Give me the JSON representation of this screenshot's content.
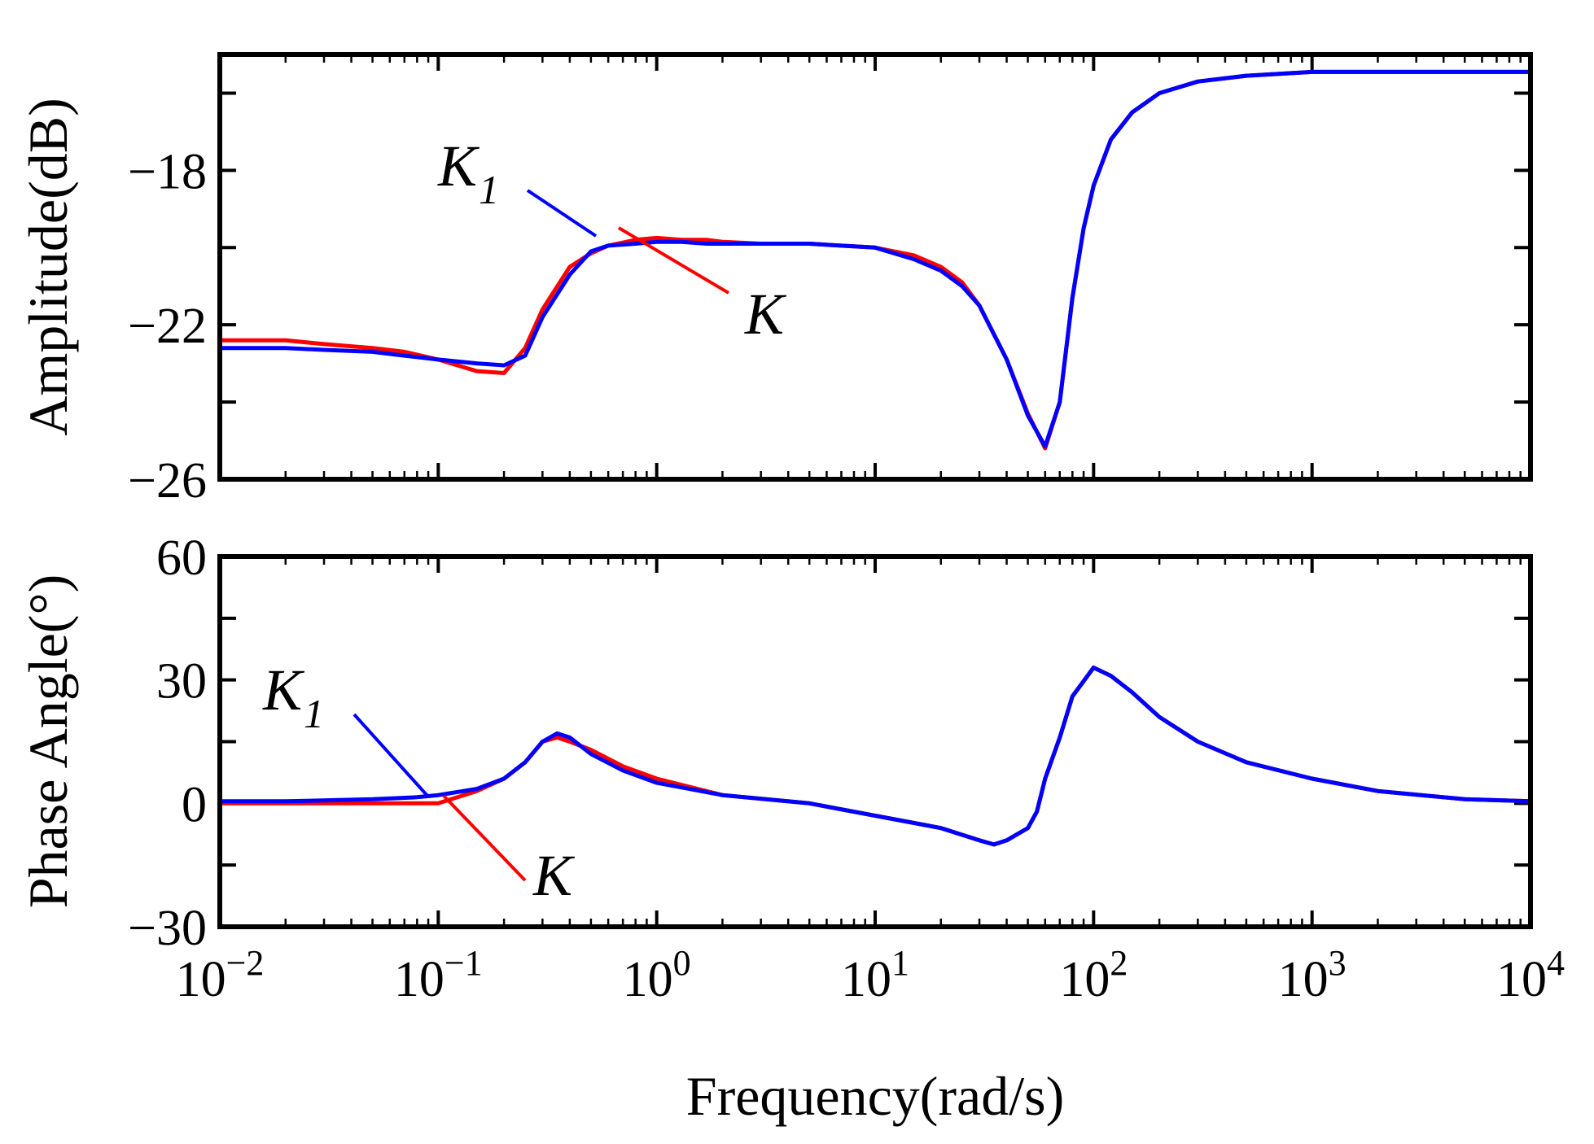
{
  "chart_data": [
    {
      "type": "line",
      "panel": "amplitude",
      "ylabel": "Amplitude(dB)",
      "xscale": "log",
      "xlim": [
        0.01,
        10000
      ],
      "ylim": [
        -26,
        -15
      ],
      "yticks": [
        -26,
        -22,
        -18
      ],
      "ytick_labels": [
        "−26",
        "−22",
        "−18"
      ],
      "series": [
        {
          "name": "K",
          "color": "#ff0000",
          "x": [
            0.01,
            0.02,
            0.03,
            0.05,
            0.07,
            0.1,
            0.15,
            0.2,
            0.25,
            0.3,
            0.4,
            0.5,
            0.6,
            0.8,
            1.0,
            1.3,
            1.7,
            2,
            3,
            5,
            7,
            10,
            15,
            20,
            25,
            30,
            40,
            50,
            60,
            70,
            80,
            90,
            100,
            120,
            150,
            200,
            300,
            500,
            1000,
            2000,
            5000,
            10000
          ],
          "y": [
            -22.4,
            -22.4,
            -22.5,
            -22.6,
            -22.7,
            -22.9,
            -23.2,
            -23.25,
            -22.6,
            -21.6,
            -20.5,
            -20.15,
            -19.95,
            -19.8,
            -19.75,
            -19.8,
            -19.8,
            -19.85,
            -19.9,
            -19.9,
            -19.95,
            -20.0,
            -20.2,
            -20.5,
            -20.9,
            -21.5,
            -22.9,
            -24.3,
            -25.2,
            -24.0,
            -21.3,
            -19.5,
            -18.4,
            -17.2,
            -16.5,
            -16.0,
            -15.7,
            -15.55,
            -15.45,
            -15.45,
            -15.45,
            -15.45
          ]
        },
        {
          "name": "K₁",
          "color": "#0000ff",
          "x": [
            0.01,
            0.02,
            0.03,
            0.05,
            0.07,
            0.1,
            0.15,
            0.2,
            0.25,
            0.3,
            0.4,
            0.5,
            0.6,
            0.8,
            1.0,
            1.3,
            1.7,
            2,
            3,
            5,
            7,
            10,
            15,
            20,
            25,
            30,
            40,
            50,
            60,
            70,
            80,
            90,
            100,
            120,
            150,
            200,
            300,
            500,
            1000,
            2000,
            5000,
            10000
          ],
          "y": [
            -22.6,
            -22.6,
            -22.65,
            -22.7,
            -22.8,
            -22.9,
            -23.0,
            -23.05,
            -22.8,
            -21.8,
            -20.7,
            -20.1,
            -19.95,
            -19.9,
            -19.85,
            -19.85,
            -19.9,
            -19.9,
            -19.9,
            -19.9,
            -19.95,
            -20.0,
            -20.3,
            -20.6,
            -21.0,
            -21.5,
            -22.9,
            -24.35,
            -25.15,
            -24.0,
            -21.3,
            -19.5,
            -18.4,
            -17.2,
            -16.5,
            -16.0,
            -15.7,
            -15.55,
            -15.45,
            -15.45,
            -15.45,
            -15.45
          ]
        }
      ],
      "annotations": [
        {
          "text": "K",
          "subscript": "1",
          "series": "K₁"
        },
        {
          "text": "K",
          "subscript": "",
          "series": "K"
        }
      ]
    },
    {
      "type": "line",
      "panel": "phase",
      "ylabel": "Phase Angle(°)",
      "xlabel": "Frequency(rad/s)",
      "xscale": "log",
      "xlim": [
        0.01,
        10000
      ],
      "ylim": [
        -30,
        60
      ],
      "yticks": [
        -30,
        0,
        30,
        60
      ],
      "ytick_labels": [
        "−30",
        "0",
        "30",
        "60"
      ],
      "xticks": [
        0.01,
        0.1,
        1,
        10,
        100,
        1000,
        10000
      ],
      "xtick_labels": [
        {
          "base": "10",
          "exp": "−2"
        },
        {
          "base": "10",
          "exp": "−1"
        },
        {
          "base": "10",
          "exp": "0"
        },
        {
          "base": "10",
          "exp": "1"
        },
        {
          "base": "10",
          "exp": "2"
        },
        {
          "base": "10",
          "exp": "3"
        },
        {
          "base": "10",
          "exp": "4"
        }
      ],
      "series": [
        {
          "name": "K",
          "color": "#ff0000",
          "x": [
            0.01,
            0.02,
            0.05,
            0.1,
            0.15,
            0.2,
            0.25,
            0.3,
            0.35,
            0.4,
            0.5,
            0.7,
            1,
            2,
            5,
            10,
            20,
            30,
            35,
            40,
            50,
            55,
            60,
            70,
            80,
            100,
            120,
            150,
            200,
            300,
            500,
            1000,
            2000,
            5000,
            10000
          ],
          "y": [
            0,
            0,
            0,
            0,
            3,
            6,
            10,
            15,
            16,
            15,
            13,
            9,
            6,
            2,
            0,
            -3,
            -6,
            -9,
            -10,
            -9,
            -6,
            -2,
            6,
            16,
            26,
            33,
            31,
            27,
            21,
            15,
            10,
            6,
            3,
            1,
            0.5
          ]
        },
        {
          "name": "K₁",
          "color": "#0000ff",
          "x": [
            0.01,
            0.02,
            0.05,
            0.08,
            0.1,
            0.15,
            0.2,
            0.25,
            0.3,
            0.35,
            0.4,
            0.5,
            0.7,
            1,
            2,
            5,
            10,
            20,
            30,
            35,
            40,
            50,
            55,
            60,
            70,
            80,
            100,
            120,
            150,
            200,
            300,
            500,
            1000,
            2000,
            5000,
            10000
          ],
          "y": [
            0.5,
            0.5,
            1,
            1.5,
            2,
            3.5,
            6,
            10,
            15,
            17,
            16,
            12,
            8,
            5,
            2,
            0,
            -3,
            -6,
            -9,
            -10,
            -9,
            -6,
            -2,
            6,
            16,
            26,
            33,
            31,
            27,
            21,
            15,
            10,
            6,
            3,
            1,
            0.5
          ]
        }
      ],
      "annotations": [
        {
          "text": "K",
          "subscript": "1",
          "series": "K₁"
        },
        {
          "text": "K",
          "subscript": "",
          "series": "K"
        }
      ]
    }
  ]
}
